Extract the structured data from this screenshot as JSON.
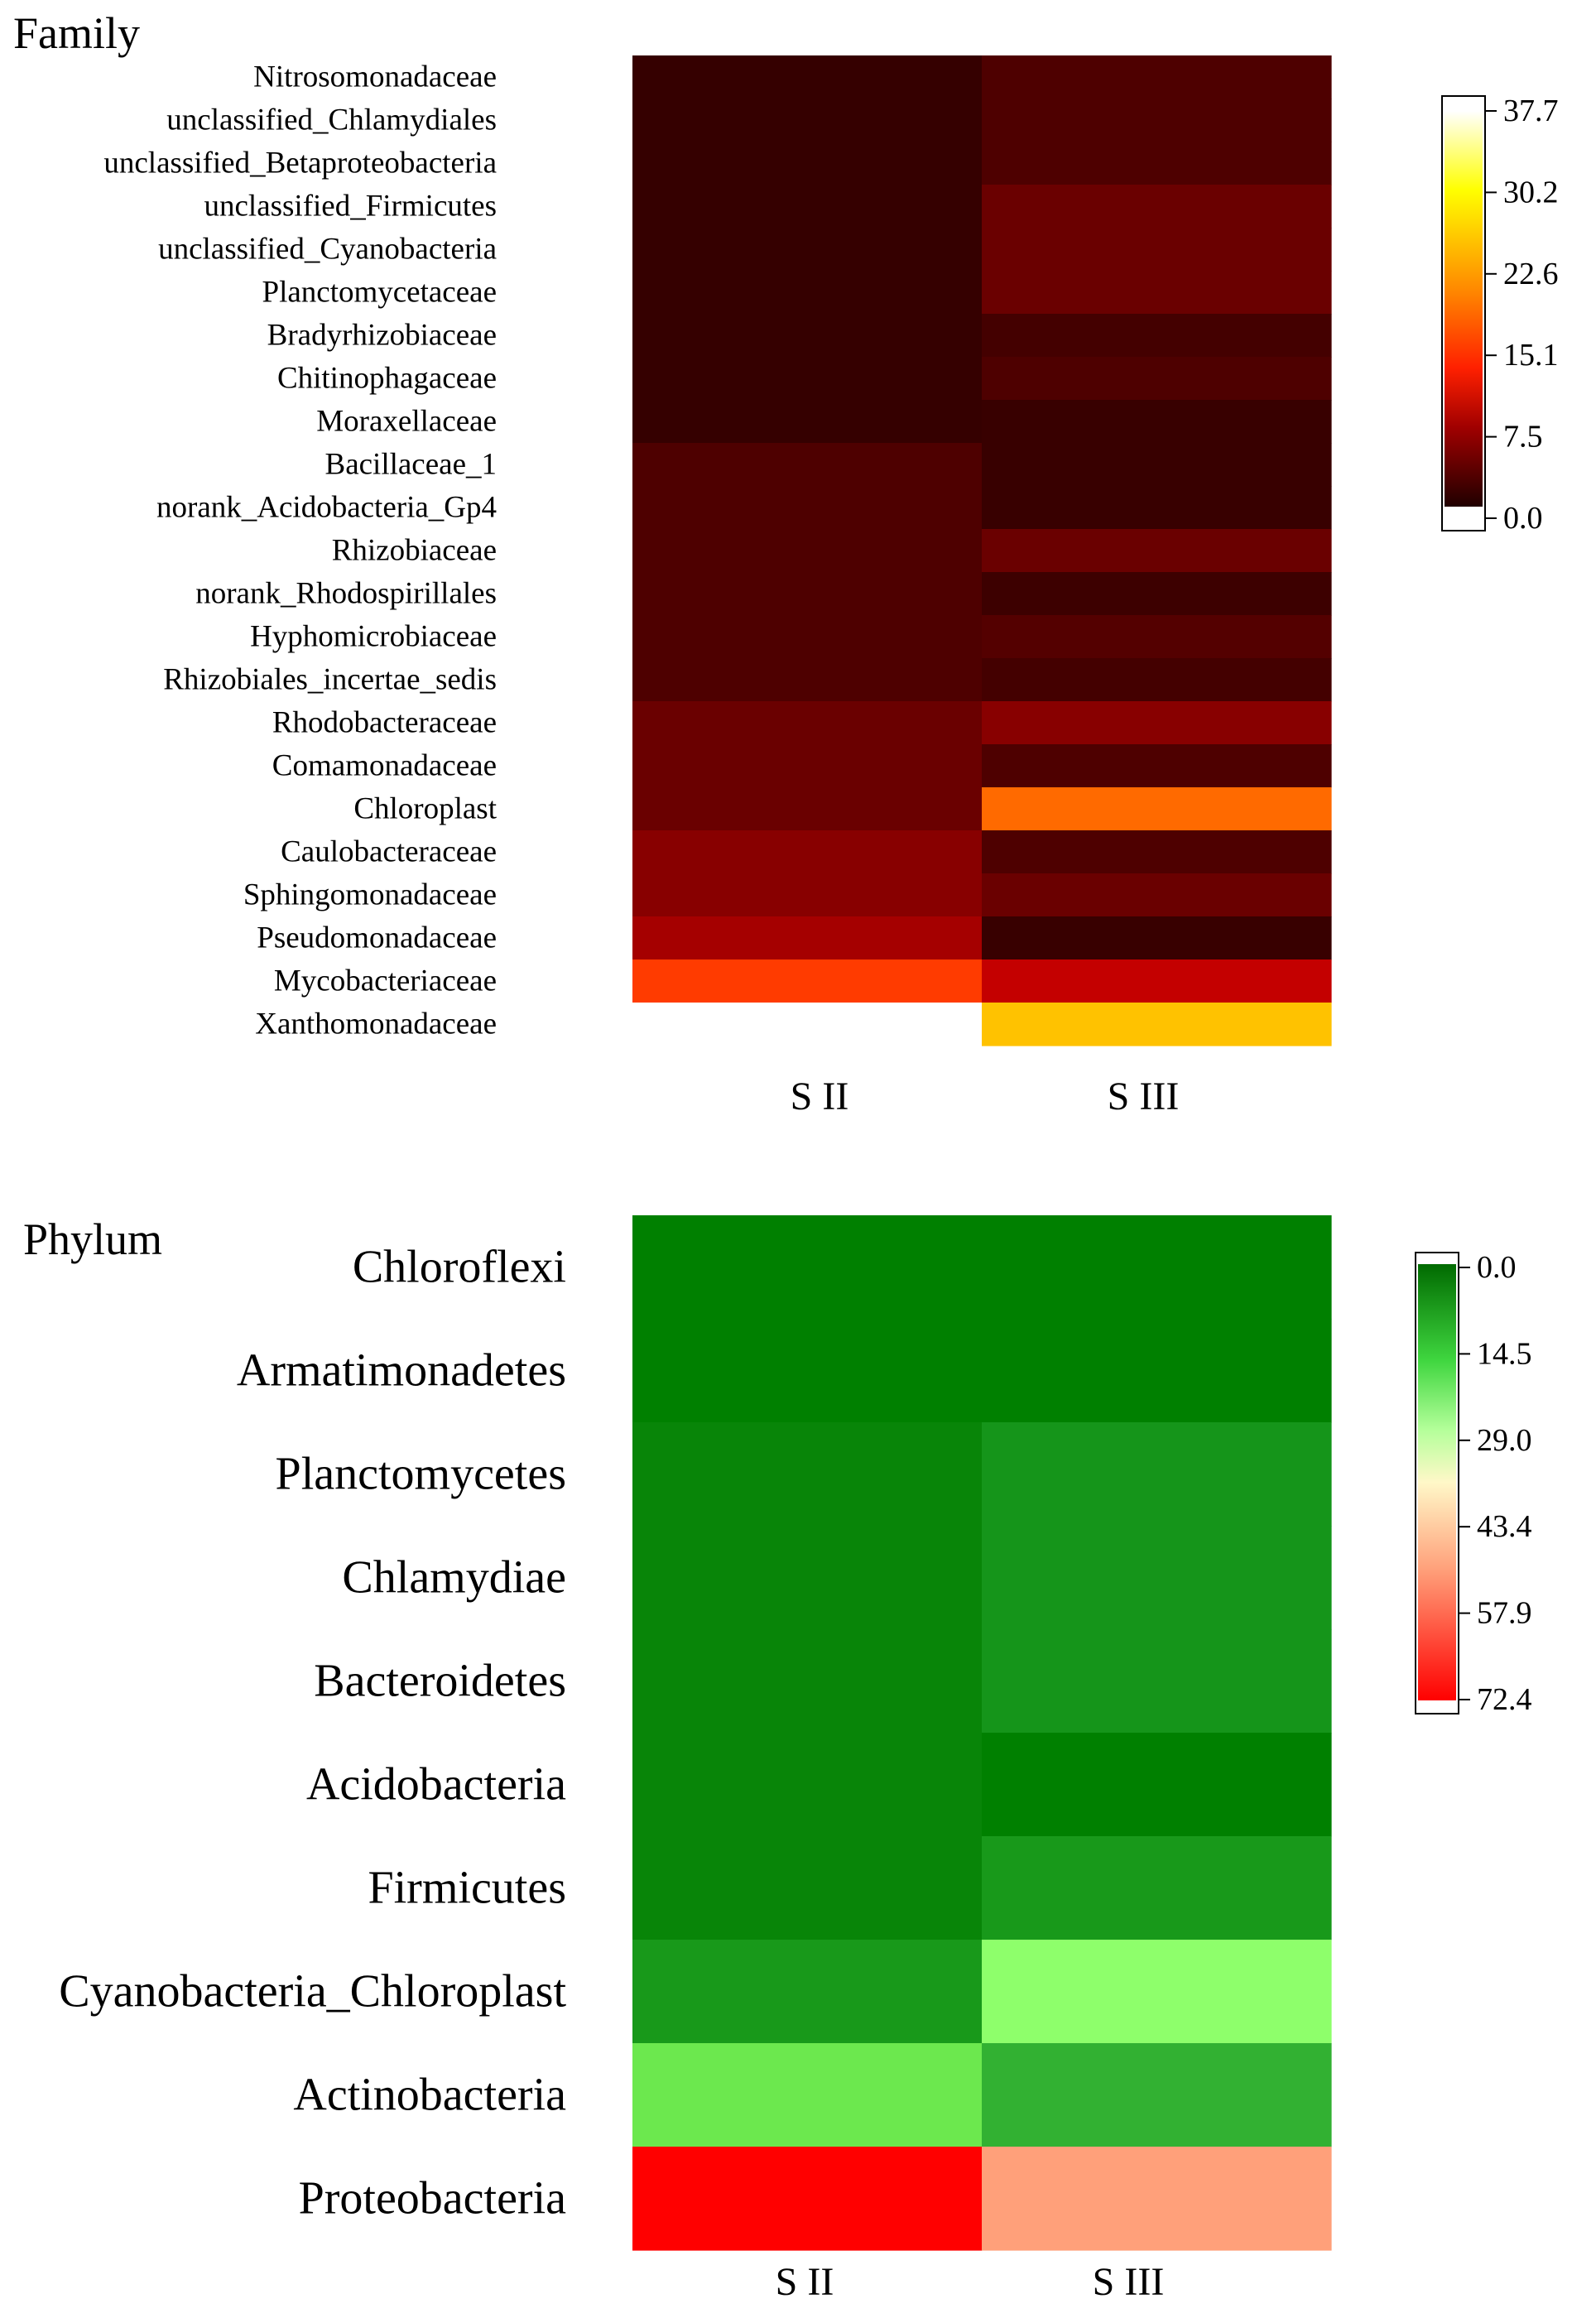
{
  "chart_data": [
    {
      "type": "heatmap",
      "title": "Family",
      "columns": [
        "S II",
        "S III"
      ],
      "rows": [
        {
          "label": "Nitrosomonadaceae",
          "values": [
            0.4,
            2.3
          ]
        },
        {
          "label": "unclassified_Chlamydiales",
          "values": [
            0.4,
            2.3
          ]
        },
        {
          "label": "unclassified_Betaproteobacteria",
          "values": [
            0.4,
            2.3
          ]
        },
        {
          "label": "unclassified_Firmicutes",
          "values": [
            0.4,
            4.5
          ]
        },
        {
          "label": "unclassified_Cyanobacteria",
          "values": [
            0.4,
            4.5
          ]
        },
        {
          "label": "Planctomycetaceae",
          "values": [
            0.4,
            4.5
          ]
        },
        {
          "label": "Bradyrhizobiaceae",
          "values": [
            0.4,
            1.5
          ]
        },
        {
          "label": "Chitinophagaceae",
          "values": [
            0.4,
            2.3
          ]
        },
        {
          "label": "Moraxellaceae",
          "values": [
            0.4,
            0.6
          ]
        },
        {
          "label": "Bacillaceae_1",
          "values": [
            2.3,
            0.6
          ]
        },
        {
          "label": "norank_Acidobacteria_Gp4",
          "values": [
            2.3,
            0.6
          ]
        },
        {
          "label": "Rhizobiaceae",
          "values": [
            2.3,
            4.5
          ]
        },
        {
          "label": "norank_Rhodospirillales",
          "values": [
            2.3,
            1.0
          ]
        },
        {
          "label": "Hyphomicrobiaceae",
          "values": [
            2.3,
            2.8
          ]
        },
        {
          "label": "Rhizobiales_incertae_sedis",
          "values": [
            2.3,
            1.5
          ]
        },
        {
          "label": "Rhodobacteraceae",
          "values": [
            4.5,
            6.0
          ]
        },
        {
          "label": "Comamonadaceae",
          "values": [
            4.5,
            2.3
          ]
        },
        {
          "label": "Chloroplast",
          "values": [
            4.5,
            19.5
          ]
        },
        {
          "label": "Caulobacteraceae",
          "values": [
            6.0,
            2.3
          ]
        },
        {
          "label": "Sphingomonadaceae",
          "values": [
            6.0,
            4.5
          ]
        },
        {
          "label": "Pseudomonadaceae",
          "values": [
            7.5,
            0.6
          ]
        },
        {
          "label": "Mycobacteriaceae",
          "values": [
            15.9,
            9.8
          ]
        },
        {
          "label": "Xanthomonadaceae",
          "values": [
            37.7,
            25.5
          ]
        }
      ],
      "colorbar": {
        "ticks": [
          "37.7",
          "30.2",
          "22.6",
          "15.1",
          "7.5",
          "0.0"
        ],
        "min": 0.0,
        "max": 37.7,
        "palette": "heat (dark red - red - orange - yellow - white)"
      },
      "colors": {
        "0.0": "#300000",
        "2.3": "#4e0000",
        "4.5": "#6a0000",
        "6.0": "#880000",
        "7.5": "#a50000",
        "9.8": "#c40000",
        "15.9": "#ff3b00",
        "19.5": "#ff6a00",
        "25.5": "#ffc200",
        "37.7": "#ffffff"
      }
    },
    {
      "type": "heatmap",
      "title": "Phylum",
      "columns": [
        "S II",
        "S III"
      ],
      "rows": [
        {
          "label": "Chloroflexi",
          "values": [
            0.0,
            0.0
          ]
        },
        {
          "label": "Armatimonadetes",
          "values": [
            0.0,
            0.0
          ]
        },
        {
          "label": "Planctomycetes",
          "values": [
            0.5,
            3.0
          ]
        },
        {
          "label": "Chlamydiae",
          "values": [
            0.5,
            3.0
          ]
        },
        {
          "label": "Bacteroidetes",
          "values": [
            0.5,
            3.0
          ]
        },
        {
          "label": "Acidobacteria",
          "values": [
            0.5,
            0.0
          ]
        },
        {
          "label": "Firmicutes",
          "values": [
            0.5,
            3.5
          ]
        },
        {
          "label": "Cyanobacteria_Chloroplast",
          "values": [
            3.5,
            20.5
          ]
        },
        {
          "label": "Actinobacteria",
          "values": [
            16.0,
            6.0
          ]
        },
        {
          "label": "Proteobacteria",
          "values": [
            72.4,
            52.0
          ]
        }
      ],
      "colorbar": {
        "ticks": [
          "0.0",
          "14.5",
          "29.0",
          "43.4",
          "57.9",
          "72.4"
        ],
        "min": 0.0,
        "max": 72.4,
        "palette": "green - light green - cream - salmon - red"
      },
      "colors": {
        "0.0": "#008000",
        "0.5": "#088508",
        "3.0": "#15951a",
        "3.5": "#18991a",
        "6.0": "#32b132",
        "16.0": "#6ce84e",
        "20.5": "#8eff6b",
        "52.0": "#ffa07a",
        "72.4": "#ff0000"
      }
    }
  ]
}
